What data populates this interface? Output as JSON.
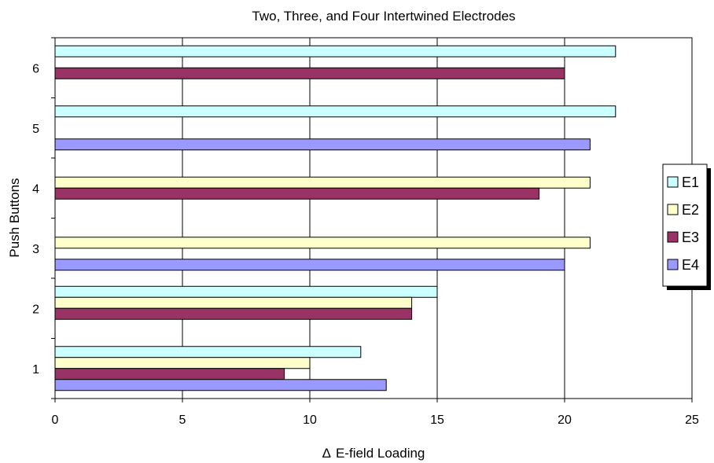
{
  "chart_data": {
    "type": "bar",
    "orientation": "horizontal",
    "title": "Two, Three, and Four Intertwined Electrodes",
    "xlabel": "E-field Loading",
    "xlabel_symbol": "Δ",
    "ylabel": "Push Buttons",
    "xlim": [
      0,
      25
    ],
    "x_ticks": [
      "0",
      "5",
      "10",
      "15",
      "20",
      "25"
    ],
    "categories": [
      "1",
      "2",
      "3",
      "4",
      "5",
      "6"
    ],
    "grid": "vertical",
    "legend_position": "right",
    "series": [
      {
        "name": "E1",
        "color": "#ccffff",
        "values": [
          12,
          15,
          null,
          null,
          22,
          22
        ]
      },
      {
        "name": "E2",
        "color": "#ffffcc",
        "values": [
          10,
          14,
          21,
          21,
          null,
          null
        ]
      },
      {
        "name": "E3",
        "color": "#993366",
        "values": [
          9,
          14,
          null,
          19,
          null,
          20
        ]
      },
      {
        "name": "E4",
        "color": "#9999ff",
        "values": [
          13,
          null,
          20,
          null,
          21,
          null
        ]
      }
    ]
  }
}
